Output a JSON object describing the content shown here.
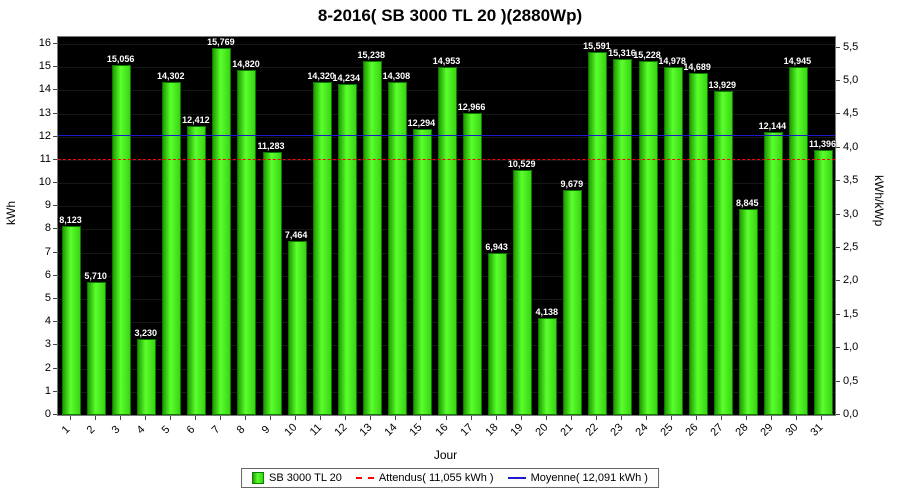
{
  "title": "8-2016( SB 3000 TL 20 )(2880Wp)",
  "axes": {
    "left_label": "kWh",
    "right_label": "kWh/kWp",
    "x_label": "Jour",
    "left_ticks": [
      0,
      1,
      2,
      3,
      4,
      5,
      6,
      7,
      8,
      9,
      10,
      11,
      12,
      13,
      14,
      15,
      16
    ],
    "right_ticks": [
      0.0,
      0.5,
      1.0,
      1.5,
      2.0,
      2.5,
      3.0,
      3.5,
      4.0,
      4.5,
      5.0,
      5.5
    ]
  },
  "legend": {
    "series_label": "SB 3000 TL 20",
    "attendus_label": "Attendus( 11,055 kWh )",
    "moyenne_label": "Moyenne( 12,091 kWh )"
  },
  "chart_data": {
    "type": "bar",
    "title": "8-2016( SB 3000 TL 20 )(2880Wp)",
    "xlabel": "Jour",
    "ylabel": "kWh",
    "y2label": "kWh/kWp",
    "categories": [
      1,
      2,
      3,
      4,
      5,
      6,
      7,
      8,
      9,
      10,
      11,
      12,
      13,
      14,
      15,
      16,
      17,
      18,
      19,
      20,
      21,
      22,
      23,
      24,
      25,
      26,
      27,
      28,
      29,
      30,
      31
    ],
    "values": [
      8.123,
      5.71,
      15.056,
      3.23,
      14.302,
      12.412,
      15.769,
      14.82,
      11.283,
      7.464,
      14.32,
      14.234,
      15.238,
      14.308,
      12.294,
      14.953,
      12.966,
      6.943,
      10.529,
      4.138,
      9.679,
      15.591,
      15.316,
      15.228,
      14.978,
      14.689,
      13.929,
      8.845,
      12.144,
      14.945,
      11.396
    ],
    "value_labels": [
      "8,123",
      "5,710",
      "15,056",
      "3,230",
      "14,302",
      "12,412",
      "15,769",
      "14,820",
      "11,283",
      "7,464",
      "14,320",
      "14,234",
      "15,238",
      "14,308",
      "12,294",
      "14,953",
      "12,966",
      "6,943",
      "10,529",
      "4,138",
      "9,679",
      "15,591",
      "15,316",
      "15,228",
      "14,978",
      "14,689",
      "13,929",
      "8,845",
      "12,144",
      "14,945",
      "11,396"
    ],
    "ylim": [
      0,
      16.3
    ],
    "y2lim": [
      0,
      5.66
    ],
    "kwp_factor": 2.88,
    "grid": true,
    "legend_position": "bottom",
    "plot_bg": "#000000",
    "bar_color": "#3bd414",
    "reference_lines": [
      {
        "name": "Attendus",
        "value": 11.055,
        "color": "#ff0000",
        "style": "dashed"
      },
      {
        "name": "Moyenne",
        "value": 12.091,
        "color": "#1a1acc",
        "style": "solid"
      }
    ]
  }
}
